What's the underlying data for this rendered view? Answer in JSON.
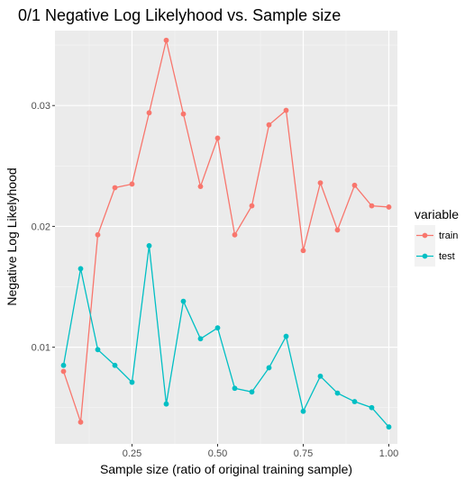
{
  "chart_data": {
    "type": "line",
    "title": "0/1 Negative Log Likelyhood vs. Sample size",
    "xlabel": "Sample size (ratio of original training sample)",
    "ylabel": "Negative Log Likelyhood",
    "xlim": [
      0.025,
      1.025
    ],
    "ylim": [
      0.002,
      0.0362
    ],
    "x_ticks": [
      0.25,
      0.5,
      0.75,
      1.0
    ],
    "x_tick_labels": [
      "0.25",
      "0.50",
      "0.75",
      "1.00"
    ],
    "y_ticks": [
      0.01,
      0.02,
      0.03
    ],
    "y_tick_labels": [
      "0.01",
      "0.02",
      "0.03"
    ],
    "grid": true,
    "background": "#ebebeb",
    "legend_position": "right",
    "legend_title": "variable",
    "x": [
      0.05,
      0.1,
      0.15,
      0.2,
      0.25,
      0.3,
      0.35,
      0.4,
      0.45,
      0.5,
      0.55,
      0.6,
      0.65,
      0.7,
      0.75,
      0.8,
      0.85,
      0.9,
      0.95,
      1.0
    ],
    "series": [
      {
        "name": "train",
        "color": "#f8766d",
        "values": [
          0.008,
          0.0038,
          0.0193,
          0.0232,
          0.0235,
          0.0294,
          0.0354,
          0.0293,
          0.0233,
          0.0273,
          0.0193,
          0.0217,
          0.0284,
          0.0296,
          0.018,
          0.0236,
          0.0197,
          0.0234,
          0.0217,
          0.0216
        ]
      },
      {
        "name": "test",
        "color": "#00bfc4",
        "values": [
          0.0085,
          0.0165,
          0.0098,
          0.0085,
          0.0071,
          0.0184,
          0.0053,
          0.0138,
          0.0107,
          0.0116,
          0.0066,
          0.0063,
          0.0083,
          0.0109,
          0.0047,
          0.0076,
          0.0062,
          0.0055,
          0.005,
          0.0034
        ]
      }
    ]
  }
}
